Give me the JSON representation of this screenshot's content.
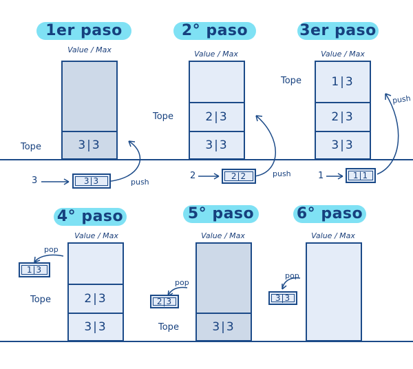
{
  "colors": {
    "ink": "#16407e",
    "title_bg": "#7fe1f4",
    "cell_light": "#e4ecf8",
    "cell_dark": "#cdd9e8"
  },
  "common": {
    "value_max_label": "Value / Max",
    "tope_label": "Tope",
    "push_label": "push",
    "pop_label": "pop"
  },
  "steps": [
    {
      "title": "1er paso",
      "top_label": "3|3",
      "cells": [
        "3|3"
      ],
      "operation": "push",
      "pushed_number": "3",
      "op_box": "3|3"
    },
    {
      "title": "2° paso",
      "top_label": "2|3",
      "cells": [
        "2|3",
        "3|3"
      ],
      "operation": "push",
      "pushed_number": "2",
      "op_box": "2|2"
    },
    {
      "title": "3er paso",
      "top_label": "1|3",
      "cells": [
        "1|3",
        "2|3",
        "3|3"
      ],
      "operation": "push",
      "pushed_number": "1",
      "op_box": "1|1"
    },
    {
      "title": "4° paso",
      "top_label": "2|3",
      "cells": [
        "2|3",
        "3|3"
      ],
      "operation": "pop",
      "op_box": "1|3"
    },
    {
      "title": "5° paso",
      "top_label": "3|3",
      "cells": [
        "3|3"
      ],
      "operation": "pop",
      "op_box": "2|3"
    },
    {
      "title": "6° paso",
      "cells": [],
      "operation": "pop",
      "op_box": "3|3"
    }
  ]
}
